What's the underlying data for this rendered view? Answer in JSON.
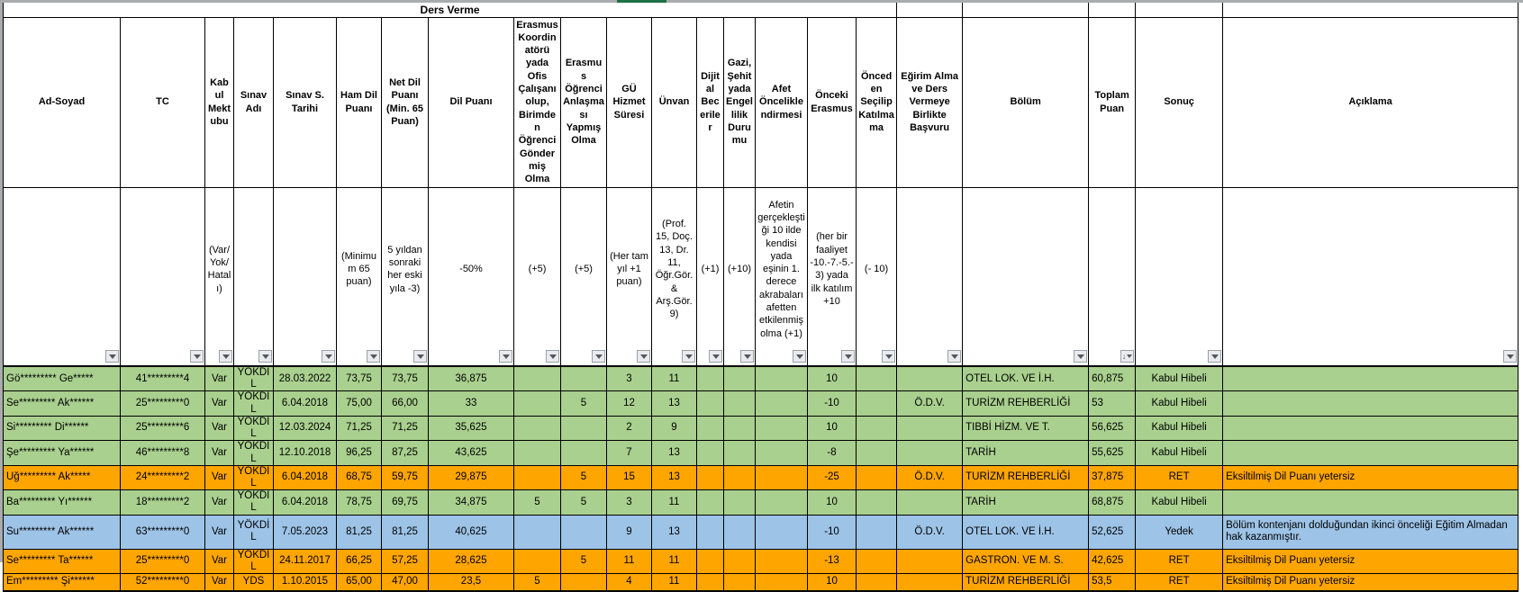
{
  "title": "Ders Verme",
  "colors": {
    "green": "#a9d08e",
    "orange": "#ffa500",
    "blue": "#9dc3e6",
    "invalid_score_text": "#ff0000",
    "brand_green_accent": "#1e7145"
  },
  "filter": {
    "sorted_column": "Toplam Puan",
    "sort_direction": "desc"
  },
  "columns": [
    {
      "key": "ad-soyad",
      "label": "Ad-Soyad",
      "note": ""
    },
    {
      "key": "tc",
      "label": "TC",
      "note": ""
    },
    {
      "key": "kabul-mektubu",
      "label": "Kabul Mektubu",
      "note": "(Var/ Yok/ Hatalı)"
    },
    {
      "key": "sinav-adi",
      "label": "Sınav Adı",
      "note": ""
    },
    {
      "key": "sinav-tarihi",
      "label": "Sınav S. Tarihi",
      "note": ""
    },
    {
      "key": "ham-dil-puani",
      "label": "Ham Dil Puanı",
      "note": "(Minimum 65 puan)"
    },
    {
      "key": "net-dil-puani",
      "label": "Net Dil Puanı (Min. 65 Puan)",
      "note": "5 yıldan sonraki her eski yıla -3)"
    },
    {
      "key": "dil-puani",
      "label": "Dil Puanı",
      "note": "-50%"
    },
    {
      "key": "erasmus-koordinatoru",
      "label": "Erasmus Koordinatörü yada Ofis Çalışanı olup, Birimden Öğrenci Göndermiş Olma",
      "note": "(+5)"
    },
    {
      "key": "erasmus-ogrenci-anlasmasi",
      "label": "Erasmus Öğrenci Anlaşması Yapmış Olma",
      "note": "(+5)"
    },
    {
      "key": "gu-hizmet-suresi",
      "label": "GÜ Hizmet Süresi",
      "note": "(Her tam yıl  +1 puan)"
    },
    {
      "key": "unvan",
      "label": "Ünvan",
      "note": "(Prof. 15, Doç. 13, Dr. 11, Öğr.Gör. & Arş.Gör. 9)"
    },
    {
      "key": "dijital-beceriler",
      "label": "Dijital Beceriler",
      "note": "(+1)"
    },
    {
      "key": "gazi-sehit-engellilik",
      "label": "Gazi, Şehit yada Engellilik Durumu",
      "note": "(+10)"
    },
    {
      "key": "afet-onceliklendirmesi",
      "label": "Afet Önceliklendirmesi",
      "note": "Afetin gerçekleştiği 10 ilde kendisi yada eşinin 1. derece akrabaları afetten etkilenmiş olma (+1)"
    },
    {
      "key": "onceki-erasmus",
      "label": "Önceki Erasmus",
      "note": "(her bir faaliyet -10.-7.-5.-3) yada ilk katılım +10"
    },
    {
      "key": "onceden-secilip-katilmama",
      "label": "Önceden Seçilip Katılmama",
      "note": "(- 10)"
    },
    {
      "key": "egirim-alma-birlikte-basvuru",
      "label": "Eğirim Alma ve Ders Vermeye Birlikte Başvuru",
      "note": ""
    },
    {
      "key": "bolum",
      "label": "Bölüm",
      "note": ""
    },
    {
      "key": "toplam-puan",
      "label": "Toplam Puan",
      "note": ""
    },
    {
      "key": "sonuc",
      "label": "Sonuç",
      "note": ""
    },
    {
      "key": "aciklama",
      "label": "Açıklama",
      "note": ""
    }
  ],
  "rows": [
    {
      "color": "green",
      "red_cols": [],
      "cells": [
        "Gö********* Ge*****",
        "41*********4",
        "Var",
        "YÖKDİL",
        "28.03.2022",
        "73,75",
        "73,75",
        "36,875",
        "",
        "",
        "3",
        "11",
        "",
        "",
        "",
        "10",
        "",
        "",
        "OTEL LOK. VE İ.H.",
        "60,875",
        "Kabul Hibeli",
        ""
      ]
    },
    {
      "color": "green",
      "red_cols": [],
      "cells": [
        "Se********* Ak******",
        "25*********0",
        "Var",
        "YÖKDİL",
        "6.04.2018",
        "75,00",
        "66,00",
        "33",
        "",
        "5",
        "12",
        "13",
        "",
        "",
        "",
        "-10",
        "",
        "Ö.D.V.",
        "TURİZM REHBERLİĞİ",
        "53",
        "Kabul Hibeli",
        ""
      ]
    },
    {
      "color": "green",
      "red_cols": [],
      "cells": [
        "Si********* Di******",
        "25*********6",
        "Var",
        "YÖKDİL",
        "12.03.2024",
        "71,25",
        "71,25",
        "35,625",
        "",
        "",
        "2",
        "9",
        "",
        "",
        "",
        "10",
        "",
        "",
        "TIBBİ HİZM. VE T.",
        "56,625",
        "Kabul Hibeli",
        ""
      ]
    },
    {
      "color": "green",
      "red_cols": [],
      "cells": [
        "Şe********* Ya******",
        "46*********8",
        "Var",
        "YÖKDİL",
        "12.10.2018",
        "96,25",
        "87,25",
        "43,625",
        "",
        "",
        "7",
        "13",
        "",
        "",
        "",
        "-8",
        "",
        "",
        "TARİH",
        "55,625",
        "Kabul Hibeli",
        ""
      ]
    },
    {
      "color": "orange",
      "red_cols": [
        6
      ],
      "cells": [
        "Uğ********* Ak*****",
        "24*********2",
        "Var",
        "YÖKDİL",
        "6.04.2018",
        "68,75",
        "59,75",
        "29,875",
        "",
        "5",
        "15",
        "13",
        "",
        "",
        "",
        "-25",
        "",
        "Ö.D.V.",
        "TURİZM REHBERLİĞİ",
        "37,875",
        "RET",
        "Eksiltilmiş Dil Puanı yetersiz"
      ]
    },
    {
      "color": "green",
      "red_cols": [],
      "cells": [
        "Ba********* Yı******",
        "18*********2",
        "Var",
        "YÖKDİL",
        "6.04.2018",
        "78,75",
        "69,75",
        "34,875",
        "5",
        "5",
        "3",
        "11",
        "",
        "",
        "",
        "10",
        "",
        "",
        "TARİH",
        "68,875",
        "Kabul Hibeli",
        ""
      ]
    },
    {
      "color": "blue",
      "red_cols": [],
      "cells": [
        "Su********* Ak******",
        "63*********0",
        "Var",
        "YÖKDİL",
        "7.05.2023",
        "81,25",
        "81,25",
        "40,625",
        "",
        "",
        "9",
        "13",
        "",
        "",
        "",
        "-10",
        "",
        "Ö.D.V.",
        "OTEL LOK. VE İ.H.",
        "52,625",
        "Yedek",
        "Bölüm kontenjanı dolduğundan ikinci önceliği Eğitim Almadan hak kazanmıştır."
      ]
    },
    {
      "color": "orange",
      "red_cols": [
        6
      ],
      "cells": [
        "Se********* Ta******",
        "25*********0",
        "Var",
        "YÖKDİL",
        "24.11.2017",
        "66,25",
        "57,25",
        "28,625",
        "",
        "5",
        "11",
        "11",
        "",
        "",
        "",
        "-13",
        "",
        "",
        "GASTRON. VE M. S.",
        "42,625",
        "RET",
        "Eksiltilmiş Dil Puanı yetersiz"
      ]
    },
    {
      "color": "orange",
      "red_cols": [
        6
      ],
      "cells": [
        "Em********* Şi******",
        "52*********0",
        "Var",
        "YDS",
        "1.10.2015",
        "65,00",
        "47,00",
        "23,5",
        "5",
        "",
        "4",
        "11",
        "",
        "",
        "",
        "10",
        "",
        "",
        "TURİZM REHBERLİĞİ",
        "53,5",
        "RET",
        "Eksiltilmiş Dil Puanı yetersiz"
      ]
    }
  ]
}
